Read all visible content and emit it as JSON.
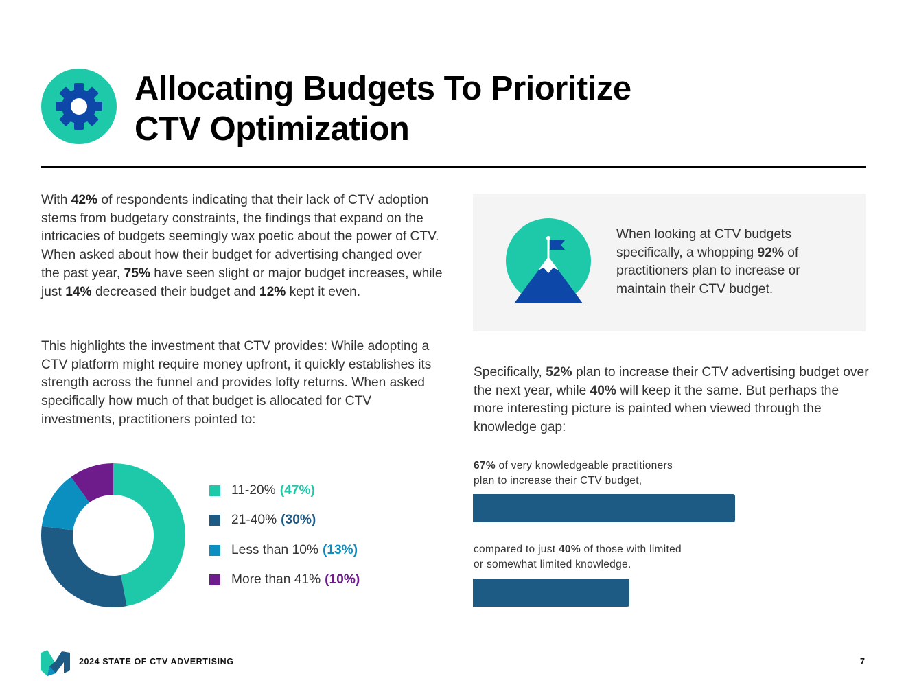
{
  "header": {
    "title_line1": "Allocating Budgets To Prioritize",
    "title_line2": "CTV Optimization",
    "icon": "gear-icon"
  },
  "para1": {
    "t1": "With ",
    "b1": "42%",
    "t2": " of respondents indicating that their lack of CTV adoption stems from budgetary constraints, the findings that expand on the intricacies of budgets seemingly wax poetic about the power of CTV. When asked about how their budget for advertising changed over the past year, ",
    "b2": "75%",
    "t3": " have seen slight or major budget increases, while just ",
    "b3": "14%",
    "t4": " decreased their budget and ",
    "b4": "12%",
    "t5": " kept it even."
  },
  "para2": {
    "text": "This highlights the investment that CTV provides: While adopting a CTV platform might require money upfront, it quickly establishes its strength across the funnel and provides lofty returns. When asked specifically how much of that budget is allocated for CTV investments, practitioners pointed to:"
  },
  "chart_data": [
    {
      "type": "pie",
      "style": "donut",
      "title": "",
      "categories": [
        "11-20%",
        "21-40%",
        "Less than 10%",
        "More than 41%"
      ],
      "values": [
        47,
        30,
        13,
        10
      ],
      "value_labels": [
        "(47%)",
        "(30%)",
        "(13%)",
        "(10%)"
      ],
      "colors": [
        "#1ec9a9",
        "#1d5a84",
        "#0a8fc0",
        "#6e1b8c"
      ],
      "legend": "right"
    },
    {
      "type": "bar",
      "orientation": "horizontal",
      "categories": [
        "very knowledgeable practitioners",
        "limited or somewhat limited knowledge"
      ],
      "values": [
        67,
        40
      ],
      "xlim": [
        0,
        100
      ],
      "color": "#1d5a84"
    }
  ],
  "callout": {
    "icon": "mountain-flag-icon",
    "t1": "When looking at CTV budgets specifically, a whopping ",
    "b1": "92%",
    "t2": " of practitioners plan to increase or maintain their CTV budget."
  },
  "para3": {
    "t1": "Specifically, ",
    "b1": "52%",
    "t2": " plan to increase their CTV advertising budget over the next year, while ",
    "b2": "40%",
    "t3": " will keep it the same. But perhaps the more interesting picture is painted when viewed through the knowledge gap:"
  },
  "bars": {
    "bar1_pct": "67%",
    "bar1_line1": " of very knowledgeable practitioners",
    "bar1_line2": "plan to increase their CTV budget,",
    "bar2_pre": "compared to just ",
    "bar2_pct": "40%",
    "bar2_post": " of those with limited",
    "bar2_line2": "or somewhat limited knowledge."
  },
  "footer": {
    "logo": "m-logo-icon",
    "text": "2024 STATE OF CTV ADVERTISING",
    "page": "7"
  }
}
